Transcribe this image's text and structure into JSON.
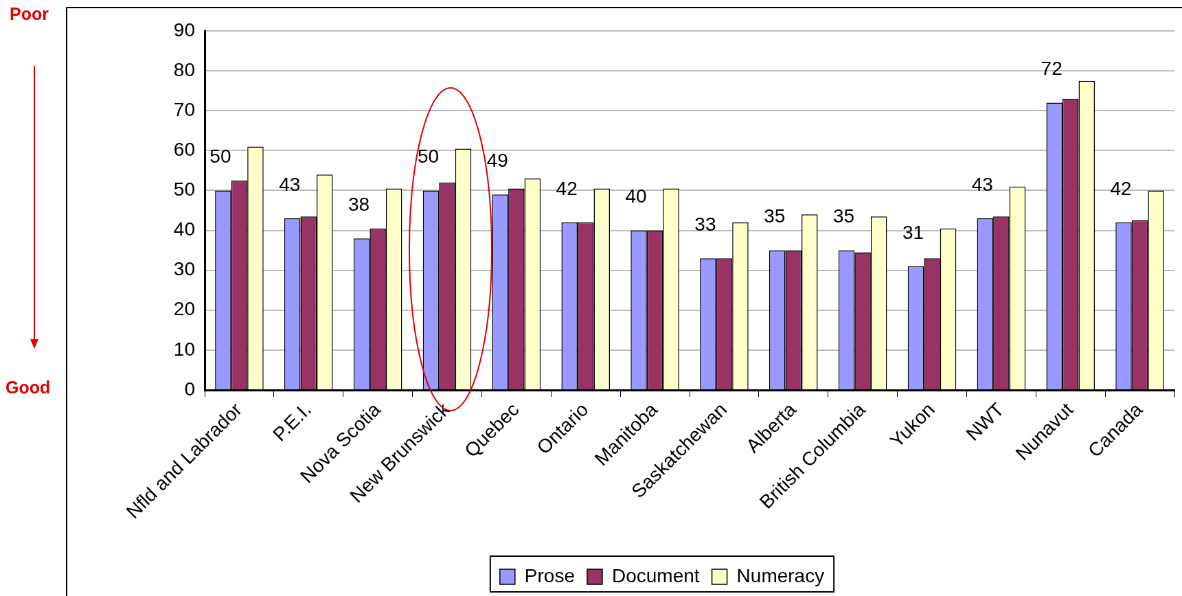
{
  "chart_data": {
    "type": "bar",
    "categories": [
      "Nfld and Labrador",
      "P.E.I.",
      "Nova Scotia",
      "New Brunswick",
      "Quebec",
      "Ontario",
      "Manitoba",
      "Saskatchewan",
      "Alberta",
      "British Columbia",
      "Yukon",
      "NWT",
      "Nunavut",
      "Canada"
    ],
    "series": [
      {
        "name": "Prose",
        "color": "#9999ff",
        "values": [
          50,
          43,
          38,
          50,
          49,
          42,
          40,
          33,
          35,
          35,
          31,
          43,
          72,
          42
        ],
        "value_labels": [
          "50",
          "43",
          "38",
          "50",
          "49",
          "42",
          "40",
          "33",
          "35",
          "35",
          "31",
          "43",
          "72",
          "42"
        ]
      },
      {
        "name": "Document",
        "color": "#993366",
        "values": [
          52.5,
          43.5,
          40.5,
          52,
          50.5,
          42,
          40,
          33,
          35,
          34.5,
          33,
          43.5,
          73,
          42.5
        ]
      },
      {
        "name": "Numeracy",
        "color": "#ffffcc",
        "values": [
          61,
          54,
          50.5,
          60.5,
          53,
          50.5,
          50.5,
          42,
          44,
          43.5,
          40.5,
          51,
          77.5,
          50
        ]
      }
    ],
    "ylim": [
      0,
      90
    ],
    "yticks": [
      0,
      10,
      20,
      30,
      40,
      50,
      60,
      70,
      80,
      90
    ],
    "grid": "y",
    "legend": "bottom",
    "annotations": [
      "Poor",
      "Good"
    ]
  }
}
